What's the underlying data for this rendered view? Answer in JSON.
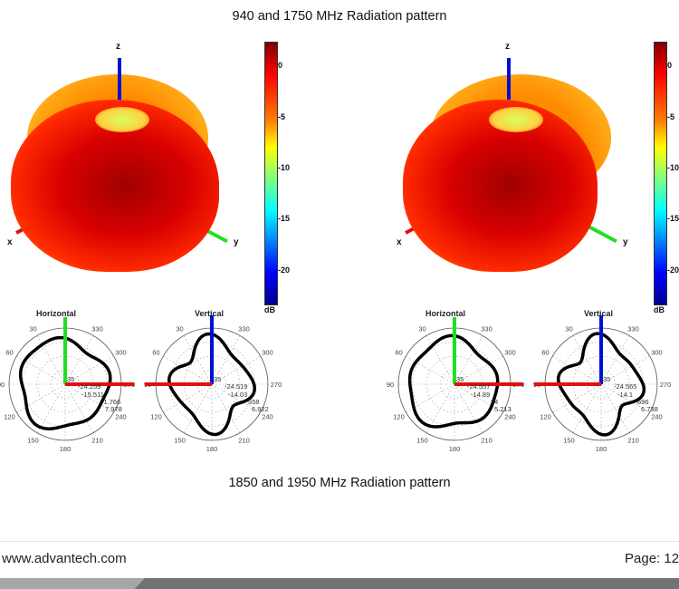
{
  "captions": {
    "top": "940 and 1750 MHz Radiation pattern",
    "bottom": "1850 and 1950 MHz Radiation pattern"
  },
  "colors": {
    "x_axis": "#e01010",
    "y_axis": "#20e020",
    "z_axis": "#0010d0",
    "pattern": "#000000"
  },
  "figures": [
    {
      "axes": {
        "x": "x",
        "y": "y",
        "z": "z"
      },
      "colorbar": {
        "ticks": [
          "0",
          "-5",
          "-10",
          "-15",
          "-20"
        ],
        "unit": "dB"
      },
      "polar": [
        {
          "title": "Horizontal",
          "center_label": "35",
          "values": [
            "-24.259",
            "-15.511",
            "-1.766",
            "7.978"
          ]
        },
        {
          "title": "Vertical",
          "center_label": "35",
          "values": [
            "-24.519",
            "-14.03",
            "558",
            "6.922"
          ]
        }
      ]
    },
    {
      "axes": {
        "x": "x",
        "y": "y",
        "z": "z"
      },
      "colorbar": {
        "ticks": [
          "0",
          "-5",
          "-10",
          "-15",
          "-20"
        ],
        "unit": "dB"
      },
      "polar": [
        {
          "title": "Horizontal",
          "center_label": "35",
          "values": [
            "-24.557",
            "-14.89",
            "84",
            "5.213"
          ]
        },
        {
          "title": "Vertical",
          "center_label": "35",
          "values": [
            "-24.565",
            "-14.1",
            "696",
            "6.738"
          ]
        }
      ]
    }
  ],
  "angle_labels": [
    "0",
    "30",
    "60",
    "90",
    "120",
    "150",
    "180",
    "210",
    "240",
    "270",
    "300",
    "330"
  ],
  "footer": {
    "url": "www.advantech.com",
    "page": "Page: 12"
  }
}
